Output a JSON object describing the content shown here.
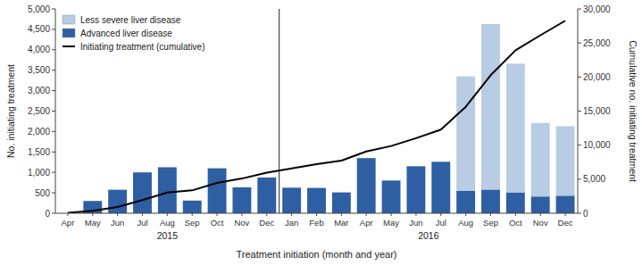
{
  "chart_data": {
    "type": "bar",
    "stacked": true,
    "grid": false,
    "legend": "upper left",
    "categories": [
      "Apr",
      "May",
      "Jun",
      "Jul",
      "Aug",
      "Sep",
      "Oct",
      "Nov",
      "Dec",
      "Jan",
      "Feb",
      "Mar",
      "Apr",
      "May",
      "Jun",
      "Jul",
      "Aug",
      "Sep",
      "Oct",
      "Nov",
      "Dec"
    ],
    "xlabel": "Treatment initiation (month and year)",
    "ylabel": "No. initiating treatment",
    "y2label": "Cumulative no. initiating treatment",
    "annotations": [
      {
        "text": "2015",
        "x": 4
      },
      {
        "text": "2016",
        "x": 14.5
      }
    ],
    "series": [
      {
        "name": "Advanced liver disease",
        "type": "bar",
        "color": "#2e5fa3",
        "values": [
          0,
          300,
          575,
          1000,
          1125,
          310,
          1100,
          635,
          875,
          625,
          620,
          510,
          1350,
          800,
          1150,
          1260,
          550,
          580,
          510,
          410,
          430
        ]
      },
      {
        "name": "Less severe liver disease",
        "type": "bar",
        "color": "#b8cce4",
        "values": [
          0,
          0,
          0,
          0,
          0,
          0,
          0,
          0,
          0,
          0,
          0,
          0,
          0,
          0,
          0,
          0,
          2800,
          4050,
          3150,
          1800,
          1700
        ]
      },
      {
        "name": "Initiating treatment (cumulative)",
        "type": "line",
        "axis": "y2",
        "color": "#000000",
        "values": [
          50,
          350,
          925,
          1925,
          3050,
          3360,
          4460,
          5095,
          5970,
          6595,
          7215,
          7725,
          9075,
          9875,
          11025,
          12285,
          15635,
          20265,
          23925,
          26135,
          28265
        ]
      }
    ],
    "ylim": [
      0,
      5000
    ],
    "yticks": [
      0,
      500,
      {
        "value": 1000,
        "label": "1,000"
      },
      {
        "value": 1500,
        "label": "1,500"
      },
      {
        "value": 2000,
        "label": "2,000"
      },
      {
        "value": 2500,
        "label": "2,500"
      },
      {
        "value": 3000,
        "label": "3,000"
      },
      {
        "value": 3500,
        "label": "3,500"
      },
      {
        "value": 4000,
        "label": "4,000"
      },
      {
        "value": 4500,
        "label": "4,500"
      },
      {
        "value": 5000,
        "label": "5,000"
      }
    ],
    "y2lim": [
      0,
      30000
    ],
    "y2ticks": [
      0,
      {
        "value": 5000,
        "label": "5,000"
      },
      {
        "value": 10000,
        "label": "10,000"
      },
      {
        "value": 15000,
        "label": "15,000"
      },
      {
        "value": 20000,
        "label": "20,000"
      },
      {
        "value": 25000,
        "label": "25,000"
      },
      {
        "value": 30000,
        "label": "30,000"
      }
    ]
  }
}
